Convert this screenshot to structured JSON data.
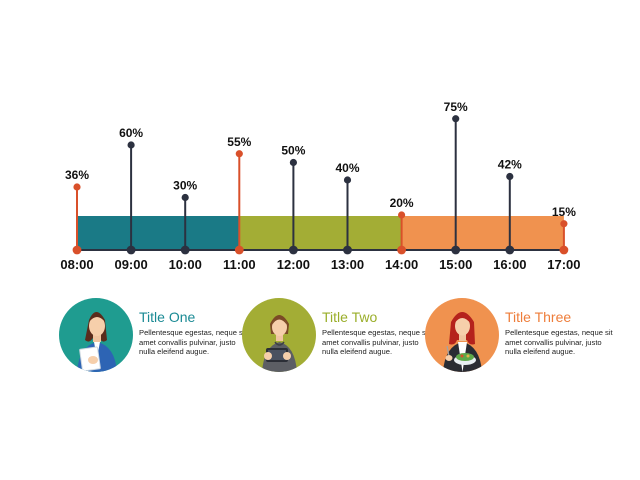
{
  "colors": {
    "teal": "#1a7a86",
    "olive": "#a3ad35",
    "orange": "#f0924f",
    "stem_dark": "#2c3140",
    "stem_accent": "#d9502a",
    "title_teal": "#1a8a94",
    "title_olive": "#9aae2a",
    "title_orange": "#ee7d3a"
  },
  "chart_data": {
    "type": "timeline",
    "times": [
      "08:00",
      "09:00",
      "10:00",
      "11:00",
      "12:00",
      "13:00",
      "14:00",
      "15:00",
      "16:00",
      "17:00"
    ],
    "values": [
      36,
      60,
      30,
      55,
      50,
      40,
      20,
      75,
      42,
      15
    ],
    "value_labels": [
      "36%",
      "60%",
      "30%",
      "55%",
      "50%",
      "40%",
      "20%",
      "75%",
      "42%",
      "15%"
    ],
    "accent_points": [
      "08:00",
      "11:00",
      "14:00",
      "17:00"
    ],
    "segments": [
      {
        "from": "08:00",
        "to": "11:00",
        "color": "teal"
      },
      {
        "from": "11:00",
        "to": "14:00",
        "color": "olive"
      },
      {
        "from": "14:00",
        "to": "17:00",
        "color": "orange"
      }
    ]
  },
  "cards": [
    {
      "title": "Title One",
      "title_color": "#1a8a94",
      "avatar_bg": "#1f9c90",
      "icon": "woman-holding-document-icon",
      "body": "Pellentesque egestas, neque sit amet convallis pulvinar, justo nulla eleifend augue."
    },
    {
      "title": "Title Two",
      "title_color": "#9aae2a",
      "avatar_bg": "#a3ad35",
      "icon": "woman-with-tablet-icon",
      "body": "Pellentesque egestas, neque sit amet convallis pulvinar, justo nulla eleifend augue."
    },
    {
      "title": "Title Three",
      "title_color": "#ee7d3a",
      "avatar_bg": "#f0924f",
      "icon": "woman-eating-salad-icon",
      "body": "Pellentesque egestas, neque sit amet convallis pulvinar, justo nulla eleifend augue."
    }
  ]
}
